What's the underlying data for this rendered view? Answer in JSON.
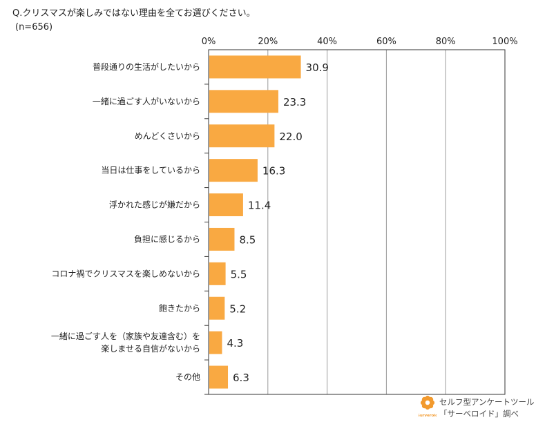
{
  "header": {
    "question": "Q.クリスマスが楽しみではない理由を全てお選びください。",
    "sample_size": "(n=656)"
  },
  "chart_data": {
    "type": "bar",
    "orientation": "horizontal",
    "title": "Q.クリスマスが楽しみではない理由を全てお選びください。",
    "subtitle": "(n=656)",
    "categories": [
      [
        "普段通りの生活がしたいから"
      ],
      [
        "一緒に過ごす人がいないから"
      ],
      [
        "めんどくさいから"
      ],
      [
        "当日は仕事をしているから"
      ],
      [
        "浮かれた感じが嫌だから"
      ],
      [
        "負担に感じるから"
      ],
      [
        "コロナ禍でクリスマスを楽しめないから"
      ],
      [
        "飽きたから"
      ],
      [
        "一緒に過ごす人を（家族や友達含む）を",
        "楽しませる自信がないから"
      ],
      [
        "その他"
      ]
    ],
    "values": [
      30.9,
      23.3,
      22.0,
      16.3,
      11.4,
      8.5,
      5.5,
      5.2,
      4.3,
      6.3
    ],
    "value_labels": [
      "30.9",
      "23.3",
      "22.0",
      "16.3",
      "11.4",
      "8.5",
      "5.5",
      "5.2",
      "4.3",
      "6.3"
    ],
    "xlim": [
      0,
      100
    ],
    "xticks": [
      "0%",
      "20%",
      "40%",
      "60%",
      "80%",
      "100%"
    ],
    "xtick_values": [
      0,
      20,
      40,
      60,
      80,
      100
    ],
    "grid": true,
    "axis_position": "top",
    "colors": {
      "bar": "#F9A942",
      "grid": "#999999",
      "axis": "#333333"
    }
  },
  "branding": {
    "line1": "セルフ型アンケートツール",
    "line2": "「サーベロイド」調べ",
    "logo_text": "Surveroid",
    "logo_color": "#F29A2E"
  }
}
